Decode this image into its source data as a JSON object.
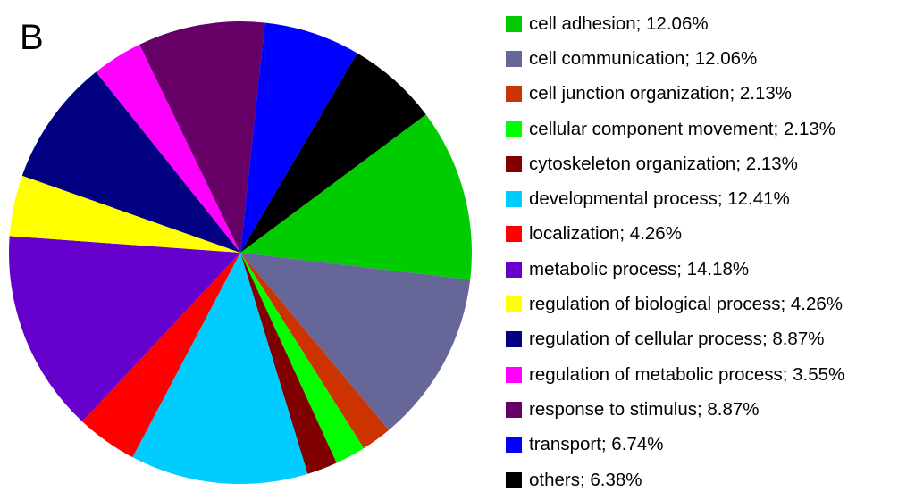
{
  "panel_label": "B",
  "chart_data": {
    "type": "pie",
    "title": "",
    "start_angle_deg": 323.3,
    "direction": "clockwise",
    "slices": [
      {
        "label": "cell adhesion; 12.06%",
        "value": 12.06,
        "color": "#00cc00"
      },
      {
        "label": "cell communication; 12.06%",
        "value": 12.06,
        "color": "#666699"
      },
      {
        "label": "cell junction organization; 2.13%",
        "value": 2.13,
        "color": "#cc3300"
      },
      {
        "label": "cellular component movement; 2.13%",
        "value": 2.13,
        "color": "#00ff00"
      },
      {
        "label": "cytoskeleton organization; 2.13%",
        "value": 2.13,
        "color": "#800000"
      },
      {
        "label": "developmental process; 12.41%",
        "value": 12.41,
        "color": "#00ccff"
      },
      {
        "label": "localization; 4.26%",
        "value": 4.26,
        "color": "#ff0000"
      },
      {
        "label": "metabolic process; 14.18%",
        "value": 14.18,
        "color": "#6600cc"
      },
      {
        "label": "regulation of biological process; 4.26%",
        "value": 4.26,
        "color": "#ffff00"
      },
      {
        "label": "regulation of cellular process; 8.87%",
        "value": 8.87,
        "color": "#000080"
      },
      {
        "label": "regulation of metabolic process; 3.55%",
        "value": 3.55,
        "color": "#ff00ff"
      },
      {
        "label": "response to stimulus; 8.87%",
        "value": 8.87,
        "color": "#660066"
      },
      {
        "label": "transport; 6.74%",
        "value": 6.74,
        "color": "#0000ff"
      },
      {
        "label": "others; 6.38%",
        "value": 6.38,
        "color": "#000000"
      }
    ],
    "legend_position": "right"
  }
}
